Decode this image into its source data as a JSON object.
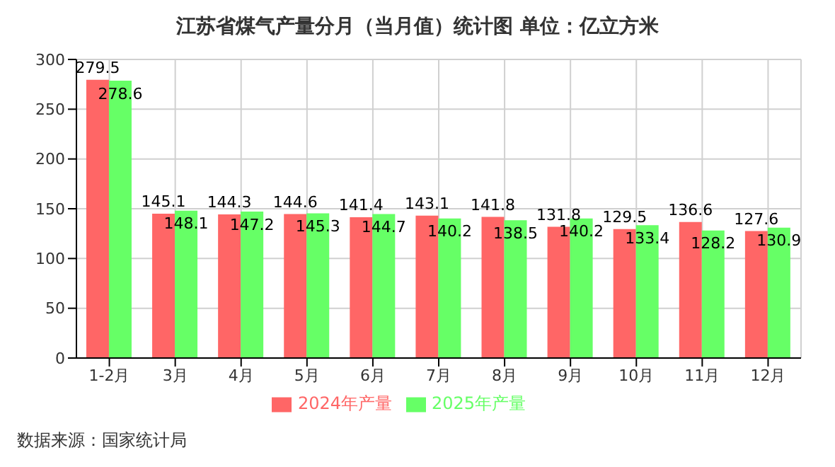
{
  "chart_data": {
    "type": "bar",
    "title": "江苏省煤气产量分月（当月值）统计图 单位：亿立方米",
    "categories": [
      "1-2月",
      "3月",
      "4月",
      "5月",
      "6月",
      "7月",
      "8月",
      "9月",
      "10月",
      "11月",
      "12月"
    ],
    "series": [
      {
        "name": "2024年产量",
        "color": "#ff6666",
        "values": [
          279.5,
          145.1,
          144.3,
          144.6,
          141.4,
          143.1,
          141.8,
          131.8,
          129.5,
          136.6,
          127.6
        ]
      },
      {
        "name": "2025年产量",
        "color": "#66ff66",
        "values": [
          278.6,
          148.1,
          147.2,
          145.3,
          144.7,
          140.2,
          138.5,
          140.2,
          133.4,
          128.2,
          130.9
        ]
      }
    ],
    "ylim": [
      0,
      300
    ],
    "yticks": [
      0,
      50,
      100,
      150,
      200,
      250,
      300
    ],
    "grid": true,
    "legend": "bottom",
    "data_labels": true,
    "annotations": [
      "数据来源：国家统计局"
    ]
  }
}
